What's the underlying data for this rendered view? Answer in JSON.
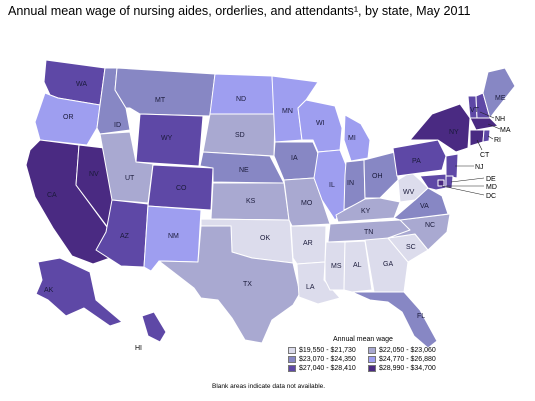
{
  "title": "Annual mean wage of nursing aides, orderlies, and attendants¹, by state, May 2011",
  "legend": {
    "title": "Annual mean wage",
    "bins": [
      {
        "label": "$19,550 - $21,730",
        "color": "#dcdcec"
      },
      {
        "label": "$22,050 - $23,060",
        "color": "#a9a9d1"
      },
      {
        "label": "$23,070 - $24,350",
        "color": "#8787c4"
      },
      {
        "label": "$24,770 - $26,880",
        "color": "#9e9ef0"
      },
      {
        "label": "$27,040 - $28,410",
        "color": "#5e48a6"
      },
      {
        "label": "$28,990 - $34,700",
        "color": "#4a2a82"
      }
    ]
  },
  "note": "Blank areas indicate data not available.",
  "states": [
    {
      "abbr": "WA",
      "bin": 4
    },
    {
      "abbr": "OR",
      "bin": 3
    },
    {
      "abbr": "CA",
      "bin": 5
    },
    {
      "abbr": "NV",
      "bin": 5
    },
    {
      "abbr": "ID",
      "bin": 2
    },
    {
      "abbr": "MT",
      "bin": 2
    },
    {
      "abbr": "WY",
      "bin": 4
    },
    {
      "abbr": "UT",
      "bin": 1
    },
    {
      "abbr": "AZ",
      "bin": 4
    },
    {
      "abbr": "CO",
      "bin": 4
    },
    {
      "abbr": "NM",
      "bin": 3
    },
    {
      "abbr": "ND",
      "bin": 3
    },
    {
      "abbr": "SD",
      "bin": 1
    },
    {
      "abbr": "NE",
      "bin": 2
    },
    {
      "abbr": "KS",
      "bin": 1
    },
    {
      "abbr": "OK",
      "bin": 0
    },
    {
      "abbr": "TX",
      "bin": 1
    },
    {
      "abbr": "MN",
      "bin": 3
    },
    {
      "abbr": "IA",
      "bin": 2
    },
    {
      "abbr": "MO",
      "bin": 1
    },
    {
      "abbr": "AR",
      "bin": 0
    },
    {
      "abbr": "LA",
      "bin": 0
    },
    {
      "abbr": "WI",
      "bin": 3
    },
    {
      "abbr": "IL",
      "bin": 3
    },
    {
      "abbr": "MI",
      "bin": 3
    },
    {
      "abbr": "IN",
      "bin": 2
    },
    {
      "abbr": "OH",
      "bin": 2
    },
    {
      "abbr": "KY",
      "bin": 1
    },
    {
      "abbr": "TN",
      "bin": 1
    },
    {
      "abbr": "MS",
      "bin": 0
    },
    {
      "abbr": "AL",
      "bin": 0
    },
    {
      "abbr": "GA",
      "bin": 0
    },
    {
      "abbr": "FL",
      "bin": 2
    },
    {
      "abbr": "SC",
      "bin": 0
    },
    {
      "abbr": "NC",
      "bin": 1
    },
    {
      "abbr": "VA",
      "bin": 2
    },
    {
      "abbr": "WV",
      "bin": 0
    },
    {
      "abbr": "PA",
      "bin": 4
    },
    {
      "abbr": "NY",
      "bin": 5
    },
    {
      "abbr": "VT",
      "bin": 4
    },
    {
      "abbr": "NH",
      "bin": 4
    },
    {
      "abbr": "ME",
      "bin": 2
    },
    {
      "abbr": "MA",
      "bin": 5
    },
    {
      "abbr": "RI",
      "bin": 4
    },
    {
      "abbr": "CT",
      "bin": 5
    },
    {
      "abbr": "NJ",
      "bin": 4
    },
    {
      "abbr": "DE",
      "bin": 4
    },
    {
      "abbr": "MD",
      "bin": 4
    },
    {
      "abbr": "DC",
      "bin": 5
    },
    {
      "abbr": "AK",
      "bin": 4
    },
    {
      "abbr": "HI",
      "bin": 4
    }
  ]
}
